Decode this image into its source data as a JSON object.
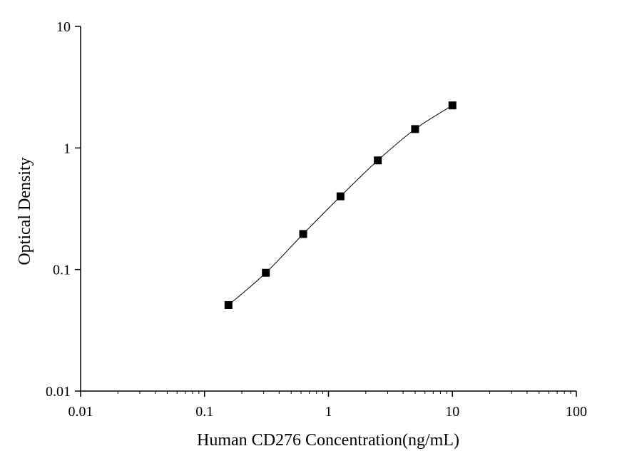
{
  "chart_data": {
    "type": "scatter",
    "title": "",
    "xlabel": "Human CD276 Concentration(ng/mL)",
    "ylabel": "Optical Density",
    "x_scale": "log",
    "y_scale": "log",
    "xlim": [
      0.01,
      100
    ],
    "ylim": [
      0.01,
      10
    ],
    "x_ticks": [
      "0.01",
      "0.1",
      "1",
      "10",
      "100"
    ],
    "y_ticks": [
      "0.01",
      "0.1",
      "1",
      "10"
    ],
    "grid": false,
    "legend": "none",
    "marker": "filled-square",
    "fit_curve": true,
    "colors": {
      "marker": "#000000",
      "curve": "#000000",
      "axis": "#000000"
    },
    "series": [
      {
        "x": [
          0.156,
          0.3125,
          0.625,
          1.25,
          2.5,
          5,
          10
        ],
        "y": [
          0.051,
          0.094,
          0.196,
          0.4,
          0.79,
          1.43,
          2.24
        ]
      }
    ]
  }
}
